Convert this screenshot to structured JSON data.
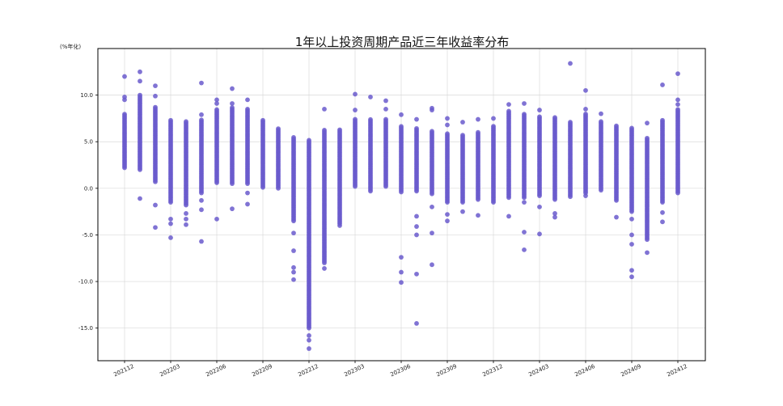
{
  "chart_data": {
    "type": "scatter",
    "title": "1年以上投资周期产品近三年收益率分布",
    "ylabel": "(%年化)",
    "xlabel": "",
    "ylim": [
      -18.5,
      15.0
    ],
    "grid": true,
    "legend": "none",
    "marker_color": "#6a5acd",
    "y_ticks": [
      -15.0,
      -10.0,
      -5.0,
      0.0,
      5.0,
      10.0
    ],
    "x_tick_labels": [
      "202112",
      "202203",
      "202206",
      "202209",
      "202212",
      "202303",
      "202306",
      "202309",
      "202312",
      "202403",
      "202406",
      "202409",
      "202412"
    ],
    "months": [
      "202112",
      "202201",
      "202202",
      "202203",
      "202204",
      "202205",
      "202206",
      "202207",
      "202208",
      "202209",
      "202210",
      "202211",
      "202212",
      "202301",
      "202302",
      "202303",
      "202304",
      "202305",
      "202306",
      "202307",
      "202308",
      "202309",
      "202310",
      "202311",
      "202312",
      "202401",
      "202402",
      "202403",
      "202404",
      "202405",
      "202406",
      "202407",
      "202408",
      "202409",
      "202410",
      "202411",
      "202412"
    ],
    "series": [
      {
        "month": "202112",
        "min": 2.2,
        "max": 8.0,
        "outliers": [
          9.5,
          9.8,
          12.0
        ]
      },
      {
        "month": "202201",
        "min": 2.0,
        "max": 10.0,
        "outliers": [
          11.5,
          12.5,
          -1.1
        ]
      },
      {
        "month": "202202",
        "min": 0.7,
        "max": 8.8,
        "outliers": [
          9.9,
          11.0,
          -1.8,
          -4.2
        ]
      },
      {
        "month": "202203",
        "min": -1.5,
        "max": 7.4,
        "outliers": [
          -3.3,
          -3.8,
          -5.3
        ]
      },
      {
        "month": "202204",
        "min": -1.8,
        "max": 7.2,
        "outliers": [
          -2.7,
          -3.3,
          -3.9
        ]
      },
      {
        "month": "202205",
        "min": -0.5,
        "max": 7.4,
        "outliers": [
          -1.3,
          -2.3,
          7.9,
          11.3,
          -5.7
        ]
      },
      {
        "month": "202206",
        "min": 0.6,
        "max": 8.5,
        "outliers": [
          9.1,
          9.5,
          -3.3
        ]
      },
      {
        "month": "202207",
        "min": 0.5,
        "max": 8.8,
        "outliers": [
          9.1,
          10.7,
          -2.2
        ]
      },
      {
        "month": "202208",
        "min": 0.5,
        "max": 8.5,
        "outliers": [
          9.5,
          -0.5,
          -1.7
        ]
      },
      {
        "month": "202209",
        "min": 0.1,
        "max": 7.3,
        "outliers": []
      },
      {
        "month": "202210",
        "min": 0.0,
        "max": 6.5,
        "outliers": []
      },
      {
        "month": "202211",
        "min": -3.5,
        "max": 5.6,
        "outliers": [
          -4.8,
          -6.7,
          -8.5,
          -9.0,
          -9.8
        ]
      },
      {
        "month": "202212",
        "min": -15.0,
        "max": 5.3,
        "outliers": [
          -15.8,
          -16.3,
          -17.2
        ]
      },
      {
        "month": "202301",
        "min": -8.0,
        "max": 6.3,
        "outliers": [
          8.5,
          -8.6
        ]
      },
      {
        "month": "202302",
        "min": -3.8,
        "max": 6.4,
        "outliers": [
          -4.0
        ]
      },
      {
        "month": "202303",
        "min": 0.2,
        "max": 7.5,
        "outliers": [
          8.4,
          10.1
        ]
      },
      {
        "month": "202304",
        "min": -0.3,
        "max": 7.4,
        "outliers": [
          9.8
        ]
      },
      {
        "month": "202305",
        "min": 0.2,
        "max": 7.5,
        "outliers": [
          9.4,
          8.5
        ]
      },
      {
        "month": "202306",
        "min": -0.4,
        "max": 6.7,
        "outliers": [
          7.9,
          -7.4,
          -9.0,
          -10.1
        ]
      },
      {
        "month": "202307",
        "min": -0.3,
        "max": 6.5,
        "outliers": [
          7.4,
          -3.0,
          -4.1,
          -5.0,
          -9.2,
          -14.5
        ]
      },
      {
        "month": "202308",
        "min": -0.6,
        "max": 6.2,
        "outliers": [
          8.4,
          8.6,
          -2.0,
          -4.8,
          -8.2
        ]
      },
      {
        "month": "202309",
        "min": -1.5,
        "max": 6.0,
        "outliers": [
          6.8,
          7.5,
          -2.8,
          -3.5
        ]
      },
      {
        "month": "202310",
        "min": -1.5,
        "max": 5.7,
        "outliers": [
          7.1,
          -2.5
        ]
      },
      {
        "month": "202311",
        "min": -1.2,
        "max": 6.0,
        "outliers": [
          7.4,
          -2.9
        ]
      },
      {
        "month": "202312",
        "min": -1.5,
        "max": 6.7,
        "outliers": [
          7.5
        ]
      },
      {
        "month": "202401",
        "min": -1.0,
        "max": 8.4,
        "outliers": [
          9.0,
          -3.0
        ]
      },
      {
        "month": "202402",
        "min": -1.0,
        "max": 8.0,
        "outliers": [
          9.1,
          -1.5,
          -4.7,
          -6.6
        ]
      },
      {
        "month": "202403",
        "min": -0.8,
        "max": 7.8,
        "outliers": [
          8.4,
          -2.0,
          -4.9
        ]
      },
      {
        "month": "202404",
        "min": -1.2,
        "max": 7.6,
        "outliers": [
          -2.7,
          -3.1
        ]
      },
      {
        "month": "202405",
        "min": -0.9,
        "max": 7.2,
        "outliers": [
          13.4
        ]
      },
      {
        "month": "202406",
        "min": -0.5,
        "max": 8.0,
        "outliers": [
          8.5,
          10.5,
          -0.8
        ]
      },
      {
        "month": "202407",
        "min": -0.2,
        "max": 7.2,
        "outliers": [
          8.0
        ]
      },
      {
        "month": "202408",
        "min": -1.3,
        "max": 6.8,
        "outliers": [
          -3.1
        ]
      },
      {
        "month": "202409",
        "min": -2.5,
        "max": 6.5,
        "outliers": [
          -3.3,
          -5.0,
          -6.0,
          -8.8,
          -9.5
        ]
      },
      {
        "month": "202410",
        "min": -5.5,
        "max": 5.5,
        "outliers": [
          7.0,
          -6.9
        ]
      },
      {
        "month": "202411",
        "min": -1.5,
        "max": 7.4,
        "outliers": [
          11.1,
          -2.6,
          -3.6
        ]
      },
      {
        "month": "202412",
        "min": -0.5,
        "max": 8.5,
        "outliers": [
          9.0,
          9.5,
          12.3
        ]
      }
    ]
  }
}
